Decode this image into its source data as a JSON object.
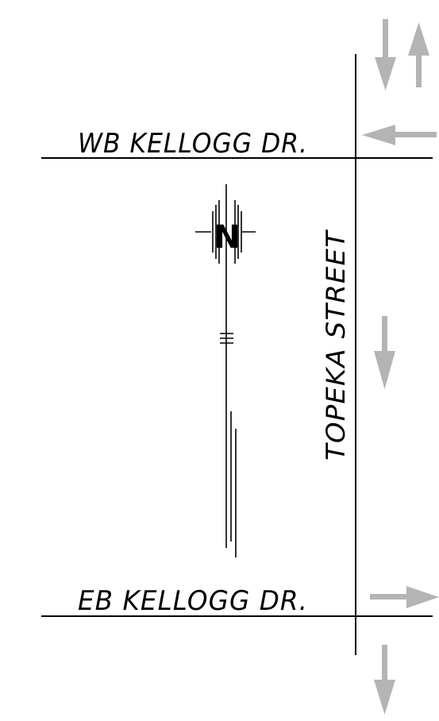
{
  "streets": {
    "wb_kellogg": "WB KELLOGG DR.",
    "eb_kellogg": "EB KELLOGG DR.",
    "topeka": "TOPEKA STREET"
  },
  "north_arrow": {
    "letter": "N"
  },
  "traffic_arrows": {
    "color": "#b4b4b4",
    "items": [
      {
        "id": "top-left-down",
        "direction": "south"
      },
      {
        "id": "top-right-up",
        "direction": "north"
      },
      {
        "id": "wb-kellogg-west",
        "direction": "west"
      },
      {
        "id": "topeka-mid-down",
        "direction": "south"
      },
      {
        "id": "eb-kellogg-east",
        "direction": "east"
      },
      {
        "id": "bottom-down",
        "direction": "south"
      }
    ]
  },
  "colors": {
    "line": "#000000",
    "arrow": "#b4b4b4",
    "background": "#ffffff"
  }
}
